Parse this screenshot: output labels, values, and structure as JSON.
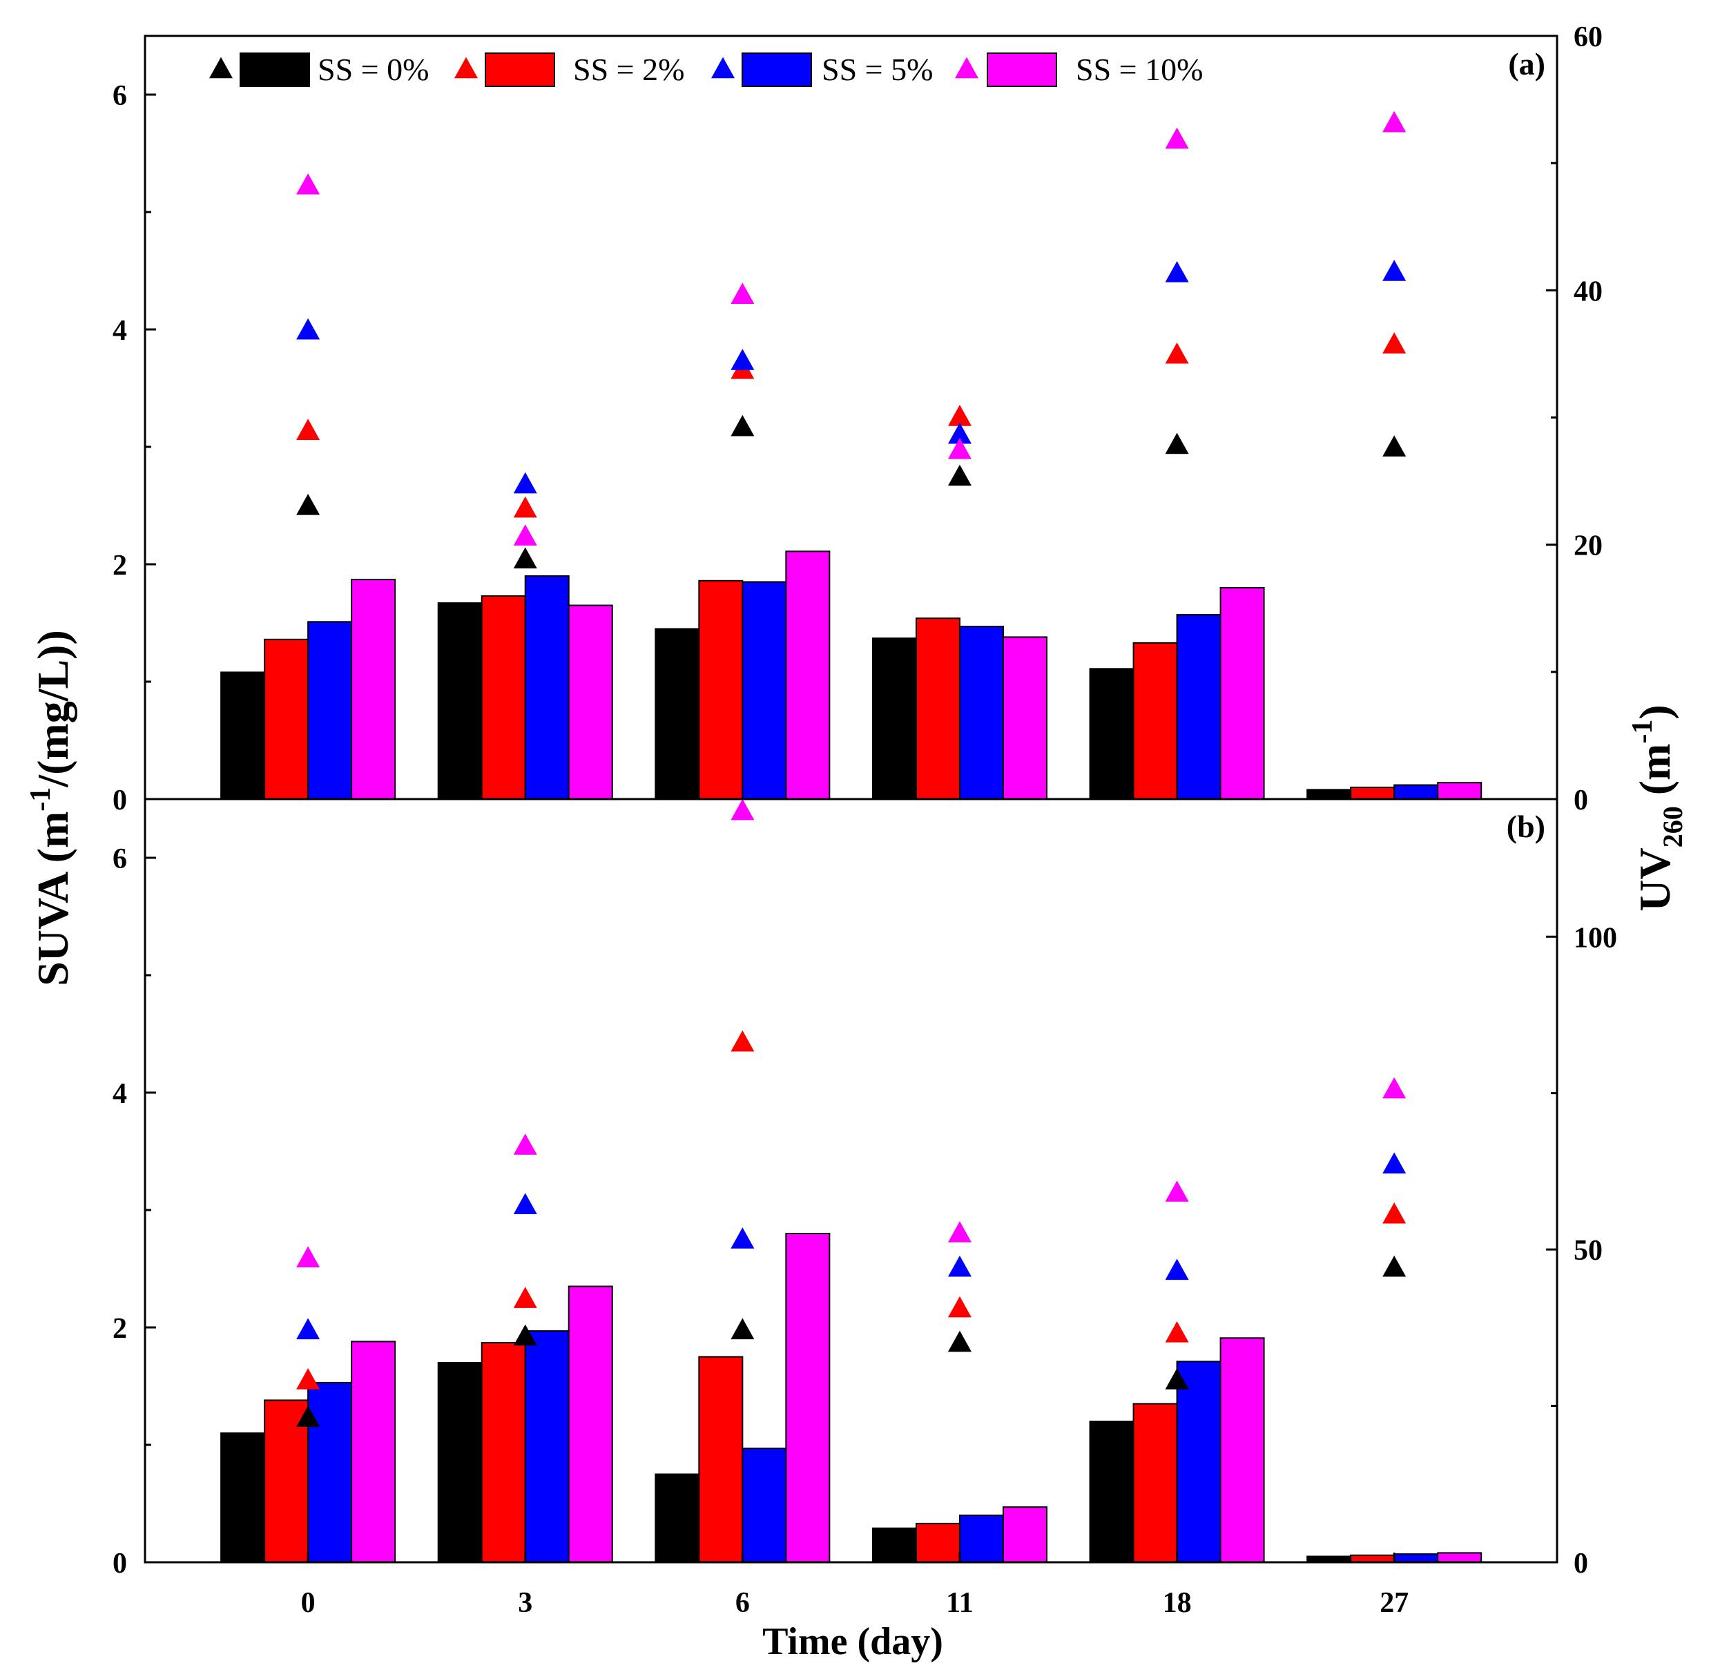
{
  "chart_data": {
    "type": "bar",
    "colors": {
      "SS = 0%": "#000000",
      "SS = 2%": "#ff0000",
      "SS = 5%": "#0000ff",
      "SS = 10%": "#ff00ff"
    },
    "legend": {
      "entries": [
        "SS = 0%",
        "SS = 2%",
        "SS = 5%",
        "SS = 10%"
      ],
      "position": "top"
    },
    "xlabel": "Time (day)",
    "categories": [
      "0",
      "3",
      "6",
      "11",
      "18",
      "27"
    ],
    "ylabel_left": "SUVA (m-1/(mg/L))",
    "ylabel_left_parts": {
      "base": "SUVA (m",
      "sup": "-1",
      "rest": "/(mg/L))"
    },
    "ylabel_right": "UV260 (m-1)",
    "ylabel_right_parts": {
      "base": "UV",
      "sub": "260",
      "mid": " (m",
      "sup": "-1",
      "rest": ")"
    },
    "panels": [
      {
        "label": "(a)",
        "ylim_left": [
          0,
          6.5
        ],
        "ylim_right": [
          0,
          60
        ],
        "yticks_left": [
          0,
          2,
          4,
          6
        ],
        "yticks_right": [
          0,
          20,
          40,
          60
        ],
        "bars_SUVA": {
          "SS = 0%": [
            1.08,
            1.67,
            1.45,
            1.37,
            1.11,
            0.08
          ],
          "SS = 2%": [
            1.36,
            1.73,
            1.86,
            1.54,
            1.33,
            0.1
          ],
          "SS = 5%": [
            1.51,
            1.9,
            1.85,
            1.47,
            1.57,
            0.12
          ],
          "SS = 10%": [
            1.87,
            1.65,
            2.11,
            1.38,
            1.8,
            0.14
          ]
        },
        "markers_UV260": {
          "SS = 0%": [
            23.0,
            18.8,
            29.2,
            25.3,
            27.8,
            27.6
          ],
          "SS = 2%": [
            28.9,
            22.8,
            33.7,
            30.0,
            34.9,
            35.7
          ],
          "SS = 5%": [
            36.8,
            24.7,
            34.4,
            28.6,
            41.3,
            41.4
          ],
          "SS = 10%": [
            48.2,
            20.6,
            39.6,
            27.4,
            51.8,
            53.1
          ]
        }
      },
      {
        "label": "(b)",
        "ylim_left": [
          0,
          6.5
        ],
        "ylim_right": [
          0,
          122
        ],
        "yticks_left": [
          0,
          2,
          4,
          6
        ],
        "yticks_right": [
          0,
          50,
          100
        ],
        "bars_SUVA": {
          "SS = 0%": [
            1.1,
            1.7,
            0.75,
            0.29,
            1.2,
            0.05
          ],
          "SS = 2%": [
            1.38,
            1.87,
            1.75,
            0.33,
            1.35,
            0.06
          ],
          "SS = 5%": [
            1.53,
            1.97,
            0.97,
            0.4,
            1.71,
            0.07
          ],
          "SS = 10%": [
            1.88,
            2.35,
            2.8,
            0.47,
            1.91,
            0.08
          ]
        },
        "markers_UV260": {
          "SS = 0%": [
            23.0,
            36.0,
            37.0,
            35.0,
            29.0,
            47.0
          ],
          "SS = 2%": [
            29.0,
            42.0,
            83.0,
            40.5,
            36.5,
            55.5
          ],
          "SS = 5%": [
            37.0,
            57.0,
            51.5,
            47.0,
            46.5,
            63.5
          ],
          "SS = 10%": [
            48.5,
            66.5,
            120.0,
            52.5,
            59.0,
            75.5
          ]
        }
      }
    ]
  }
}
